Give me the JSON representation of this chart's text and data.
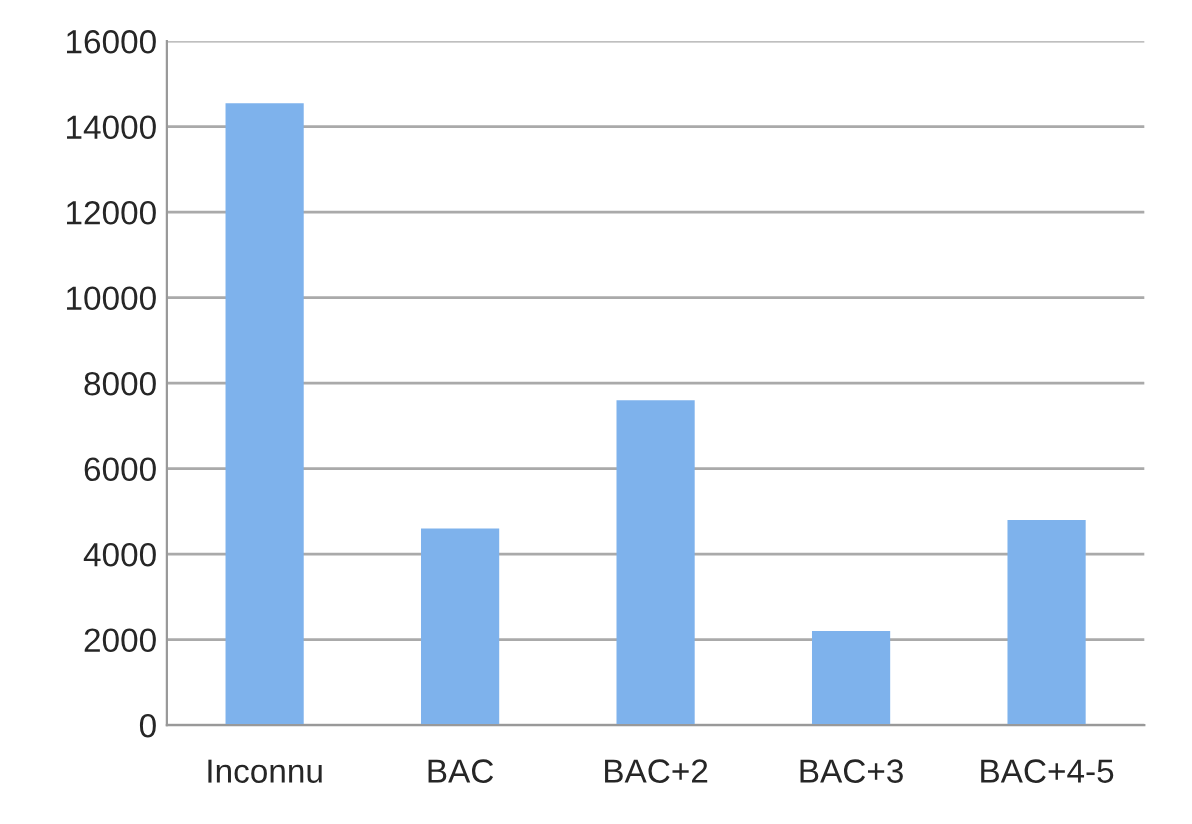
{
  "chart_data": {
    "type": "bar",
    "categories": [
      "Inconnu",
      "BAC",
      "BAC+2",
      "BAC+3",
      "BAC+4-5"
    ],
    "values": [
      14550,
      4600,
      7600,
      2200,
      4800
    ],
    "color": "#7eb2ec",
    "ylim": [
      0,
      16000
    ],
    "yticks": [
      0,
      2000,
      4000,
      6000,
      8000,
      10000,
      12000,
      14000,
      16000
    ],
    "grid": "y"
  }
}
